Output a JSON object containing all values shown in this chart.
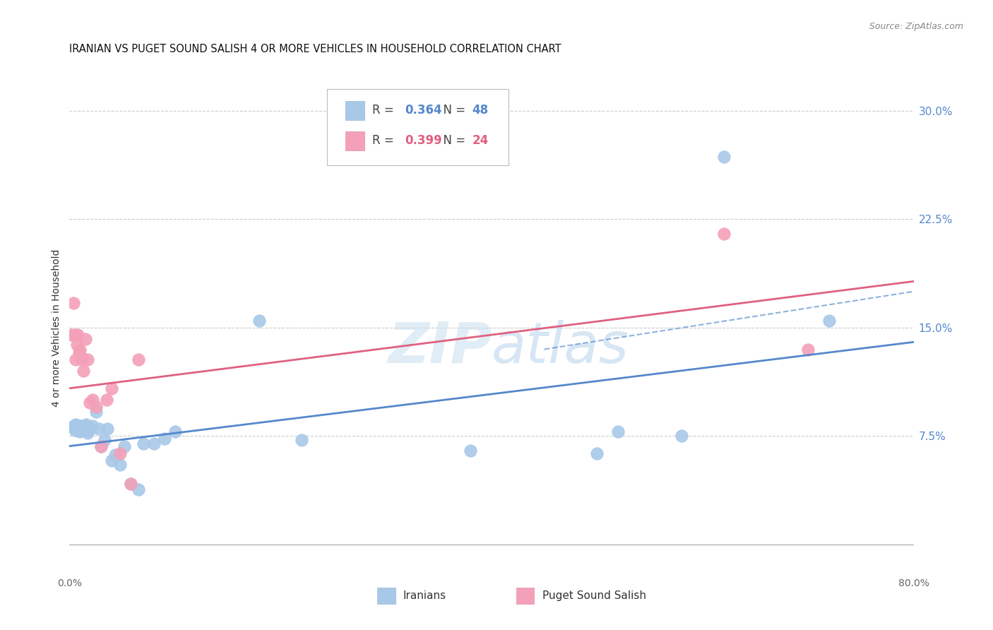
{
  "title": "IRANIAN VS PUGET SOUND SALISH 4 OR MORE VEHICLES IN HOUSEHOLD CORRELATION CHART",
  "source": "Source: ZipAtlas.com",
  "ylabel": "4 or more Vehicles in Household",
  "xlim": [
    0.0,
    0.8
  ],
  "ylim": [
    -0.02,
    0.32
  ],
  "xticks": [
    0.0,
    0.1,
    0.2,
    0.3,
    0.4,
    0.5,
    0.6,
    0.7,
    0.8
  ],
  "xticklabels": [
    "0.0%",
    "",
    "",
    "",
    "",
    "",
    "",
    "",
    "80.0%"
  ],
  "yticks": [
    0.0,
    0.075,
    0.15,
    0.225,
    0.3
  ],
  "yticklabels": [
    "",
    "7.5%",
    "15.0%",
    "22.5%",
    "30.0%"
  ],
  "blue_R": 0.364,
  "blue_N": 48,
  "pink_R": 0.399,
  "pink_N": 24,
  "blue_color": "#a8c8e8",
  "pink_color": "#f4a0b8",
  "blue_line_color": "#5588cc",
  "pink_line_color": "#e06080",
  "legend_blue_label": "Iranians",
  "legend_pink_label": "Puget Sound Salish",
  "blue_x": [
    0.004,
    0.005,
    0.006,
    0.006,
    0.007,
    0.007,
    0.008,
    0.008,
    0.009,
    0.009,
    0.01,
    0.01,
    0.011,
    0.011,
    0.012,
    0.012,
    0.013,
    0.013,
    0.014,
    0.015,
    0.016,
    0.017,
    0.018,
    0.02,
    0.022,
    0.025,
    0.028,
    0.03,
    0.033,
    0.036,
    0.04,
    0.043,
    0.048,
    0.052,
    0.058,
    0.065,
    0.07,
    0.08,
    0.09,
    0.1,
    0.18,
    0.22,
    0.38,
    0.5,
    0.52,
    0.58,
    0.62,
    0.72
  ],
  "blue_y": [
    0.082,
    0.079,
    0.08,
    0.083,
    0.079,
    0.082,
    0.08,
    0.079,
    0.082,
    0.079,
    0.081,
    0.078,
    0.08,
    0.082,
    0.08,
    0.079,
    0.079,
    0.082,
    0.08,
    0.082,
    0.083,
    0.077,
    0.079,
    0.08,
    0.082,
    0.092,
    0.08,
    0.068,
    0.072,
    0.08,
    0.058,
    0.062,
    0.055,
    0.068,
    0.042,
    0.038,
    0.07,
    0.07,
    0.073,
    0.078,
    0.155,
    0.072,
    0.065,
    0.063,
    0.078,
    0.075,
    0.268,
    0.155
  ],
  "pink_x": [
    0.002,
    0.004,
    0.005,
    0.006,
    0.007,
    0.008,
    0.009,
    0.01,
    0.011,
    0.012,
    0.013,
    0.015,
    0.017,
    0.019,
    0.022,
    0.025,
    0.03,
    0.035,
    0.04,
    0.048,
    0.058,
    0.065,
    0.62,
    0.7
  ],
  "pink_y": [
    0.145,
    0.167,
    0.145,
    0.128,
    0.138,
    0.145,
    0.133,
    0.135,
    0.13,
    0.128,
    0.12,
    0.142,
    0.128,
    0.098,
    0.1,
    0.095,
    0.068,
    0.1,
    0.108,
    0.063,
    0.042,
    0.128,
    0.215,
    0.135
  ],
  "blue_trend": [
    0.0,
    0.8,
    0.068,
    0.14
  ],
  "pink_trend": [
    0.0,
    0.8,
    0.108,
    0.182
  ],
  "dash_trend": [
    0.45,
    0.8,
    0.135,
    0.175
  ]
}
